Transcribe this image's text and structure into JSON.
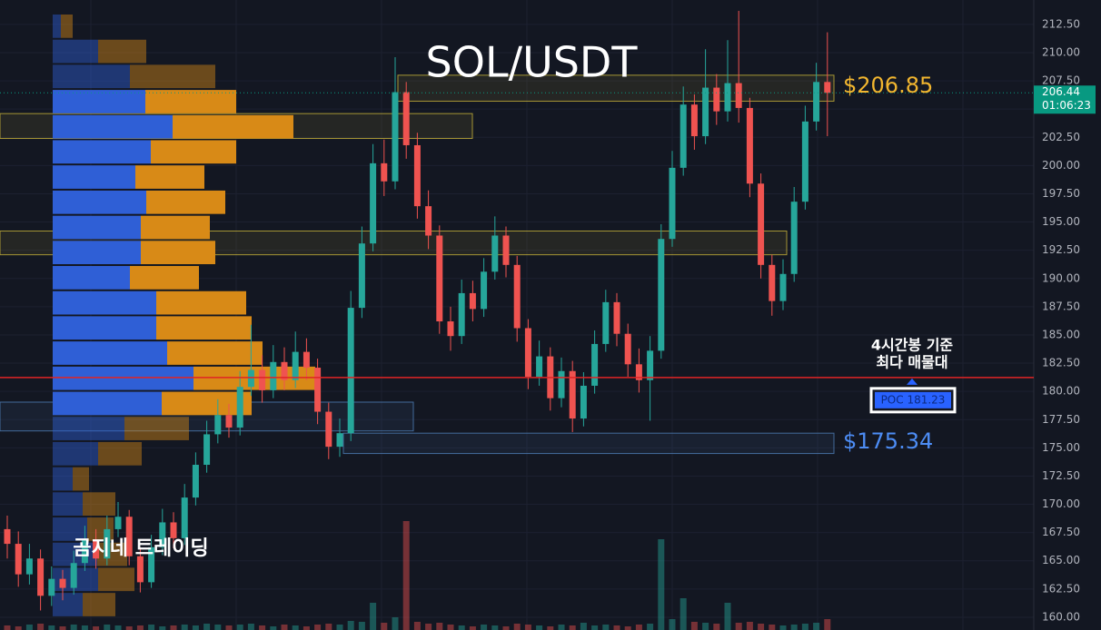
{
  "chart_data": {
    "type": "candlestick",
    "title": "SOL/USDT",
    "watermark": "곰지네 트레이딩",
    "up_color": "#26a69a",
    "down_color": "#ef5350",
    "grid": true,
    "ylim": [
      158.87,
      214.66
    ],
    "yticks": [
      {
        "value": 160,
        "label": "160.00"
      },
      {
        "value": 162.5,
        "label": "162.50"
      },
      {
        "value": 165,
        "label": "165.00"
      },
      {
        "value": 167.5,
        "label": "167.50"
      },
      {
        "value": 170,
        "label": "170.00"
      },
      {
        "value": 172.5,
        "label": "172.50"
      },
      {
        "value": 175,
        "label": "175.00"
      },
      {
        "value": 177.5,
        "label": "177.50"
      },
      {
        "value": 180,
        "label": "180.00"
      },
      {
        "value": 182.5,
        "label": "182.50"
      },
      {
        "value": 185,
        "label": "185.00"
      },
      {
        "value": 187.5,
        "label": "187.50"
      },
      {
        "value": 190,
        "label": "190.00"
      },
      {
        "value": 192.5,
        "label": "192.50"
      },
      {
        "value": 195,
        "label": "195.00"
      },
      {
        "value": 197.5,
        "label": "197.50"
      },
      {
        "value": 200,
        "label": "200.00"
      },
      {
        "value": 202.5,
        "label": "202.50"
      },
      {
        "value": 205,
        "label": "205.00"
      },
      {
        "value": 207.5,
        "label": "207.50"
      },
      {
        "value": 210,
        "label": "210.00"
      },
      {
        "value": 212.5,
        "label": "212.50"
      }
    ],
    "open": [
      167.8,
      166.5,
      163.8,
      165.2,
      161.9,
      163.4,
      162.6,
      164.8,
      166.9,
      165.2,
      167.8,
      168.9,
      165.4,
      163.1,
      166.2,
      168.4,
      167.0,
      170.6,
      173.5,
      176.2,
      177.9,
      176.8,
      180.4,
      181.9,
      180.1,
      182.6,
      181.0,
      183.5,
      182.1,
      178.2,
      175.1,
      176.3,
      187.4,
      193.1,
      200.2,
      198.6,
      206.5,
      201.8,
      196.4,
      193.8,
      186.2,
      184.9,
      188.7,
      187.3,
      190.6,
      193.8,
      191.2,
      185.6,
      181.3,
      183.1,
      179.4,
      181.8,
      177.6,
      180.5,
      184.2,
      187.9,
      185.1,
      182.4,
      181.0,
      183.6,
      193.5,
      199.8,
      205.4,
      202.6,
      206.9,
      204.8,
      207.3,
      205.1,
      198.4,
      191.2,
      188.0,
      190.4,
      196.8,
      203.9,
      207.4
    ],
    "high": [
      169.0,
      167.6,
      166.5,
      166.0,
      164.5,
      164.2,
      165.9,
      168.1,
      167.8,
      169.0,
      170.2,
      169.5,
      166.2,
      167.3,
      169.6,
      169.3,
      171.8,
      174.6,
      177.4,
      179.3,
      178.9,
      181.8,
      185.9,
      183.2,
      184.1,
      183.9,
      185.3,
      184.7,
      182.9,
      179.0,
      177.6,
      188.9,
      194.6,
      201.9,
      202.3,
      209.6,
      207.4,
      202.9,
      197.8,
      194.7,
      187.5,
      189.9,
      189.8,
      191.8,
      195.5,
      194.6,
      192.0,
      186.4,
      184.5,
      183.9,
      183.0,
      182.7,
      181.7,
      185.4,
      189.0,
      188.7,
      186.0,
      183.8,
      184.9,
      194.8,
      201.3,
      207.0,
      206.3,
      210.3,
      208.1,
      211.1,
      213.7,
      206.0,
      199.3,
      192.1,
      191.7,
      198.1,
      205.3,
      209.1,
      211.8
    ],
    "low": [
      165.2,
      162.7,
      162.9,
      160.6,
      161.0,
      161.5,
      162.0,
      164.1,
      164.3,
      164.6,
      167.1,
      164.6,
      162.2,
      162.6,
      165.5,
      166.1,
      166.4,
      169.9,
      172.8,
      175.4,
      175.9,
      176.1,
      179.6,
      179.0,
      179.4,
      180.1,
      180.3,
      181.0,
      177.1,
      174.0,
      174.2,
      175.6,
      186.5,
      192.4,
      197.3,
      197.9,
      200.6,
      195.3,
      192.6,
      185.1,
      183.6,
      184.2,
      186.2,
      186.6,
      189.9,
      190.1,
      184.4,
      180.2,
      180.5,
      178.3,
      178.6,
      176.4,
      176.9,
      179.8,
      183.5,
      184.0,
      181.3,
      179.9,
      177.4,
      182.9,
      192.8,
      199.1,
      201.4,
      201.9,
      203.6,
      203.9,
      203.8,
      197.2,
      190.0,
      186.7,
      187.2,
      189.7,
      196.1,
      203.1,
      202.6
    ],
    "close": [
      166.5,
      163.8,
      165.2,
      161.9,
      163.4,
      162.6,
      164.8,
      166.9,
      165.2,
      167.8,
      168.9,
      165.4,
      163.1,
      166.2,
      168.4,
      167.0,
      170.6,
      173.5,
      176.2,
      177.9,
      176.8,
      180.4,
      181.9,
      180.1,
      182.6,
      181.0,
      183.5,
      182.1,
      178.2,
      175.1,
      176.3,
      187.4,
      193.1,
      200.2,
      198.6,
      206.5,
      201.8,
      196.4,
      193.8,
      186.2,
      184.9,
      188.7,
      187.3,
      190.6,
      193.8,
      191.2,
      185.6,
      181.3,
      183.1,
      179.4,
      181.8,
      177.6,
      180.5,
      184.2,
      187.9,
      185.1,
      182.4,
      181.0,
      183.6,
      193.5,
      199.8,
      205.4,
      202.6,
      206.9,
      204.8,
      207.3,
      205.1,
      198.4,
      191.2,
      188.0,
      190.4,
      196.8,
      203.9,
      207.4,
      206.44
    ],
    "volume": [
      5,
      4,
      6,
      7,
      5,
      4,
      6,
      5,
      4,
      6,
      5,
      4,
      5,
      6,
      4,
      5,
      6,
      5,
      7,
      6,
      5,
      6,
      7,
      5,
      4,
      6,
      5,
      4,
      6,
      7,
      6,
      10,
      9,
      30,
      8,
      14,
      120,
      9,
      7,
      8,
      6,
      5,
      4,
      6,
      5,
      4,
      7,
      6,
      5,
      4,
      6,
      5,
      8,
      5,
      6,
      5,
      4,
      6,
      7,
      100,
      12,
      35,
      9,
      8,
      7,
      30,
      8,
      9,
      7,
      6,
      5,
      6,
      7,
      8,
      12
    ],
    "volume_profile": {
      "prices": [
        212.34,
        210.11,
        207.89,
        205.66,
        203.43,
        201.21,
        198.98,
        196.75,
        194.52,
        192.3,
        190.07,
        187.84,
        185.62,
        183.39,
        181.16,
        178.93,
        176.71,
        174.48,
        172.25,
        170.03,
        167.8,
        165.57,
        163.35,
        161.12
      ],
      "buy": [
        9,
        50,
        85,
        102,
        132,
        108,
        91,
        103,
        97,
        97,
        85,
        114,
        114,
        126,
        155,
        120,
        79,
        50,
        22,
        33,
        38,
        49,
        50,
        33
      ],
      "sell": [
        13,
        53,
        94,
        100,
        133,
        94,
        76,
        87,
        76,
        82,
        76,
        99,
        105,
        105,
        134,
        99,
        71,
        48,
        18,
        36,
        29,
        33,
        40,
        36
      ],
      "buy_color": "#2f5fd6",
      "sell_color": "#d88a17",
      "value_area": [
        177.82,
        206.77
      ]
    },
    "zones": [
      {
        "low": 205.7,
        "high": 208.0,
        "color": "#c9b43a"
      },
      {
        "low": 202.4,
        "high": 204.6,
        "color": "#c9b43a"
      },
      {
        "low": 192.1,
        "high": 194.2,
        "color": "#c9b43a"
      },
      {
        "low": 176.5,
        "high": 179.05,
        "color": "#4f7fb8"
      },
      {
        "low": 174.5,
        "high": 176.3,
        "color": "#4f7fb8"
      }
    ],
    "price_labels": [
      {
        "value": 206.85,
        "label": "$206.85",
        "color": "#f2b62f"
      },
      {
        "value": 175.34,
        "label": "$175.34",
        "color": "#4d8df5"
      }
    ],
    "poc": {
      "value": 181.23,
      "label": "POC  181.23",
      "color": "#e02424",
      "note": [
        "4시간봉 기준",
        "최다 매물대"
      ]
    },
    "current_price": {
      "value": 206.44,
      "label": "206.44",
      "countdown": "01:06:23",
      "color": "#089981"
    }
  }
}
